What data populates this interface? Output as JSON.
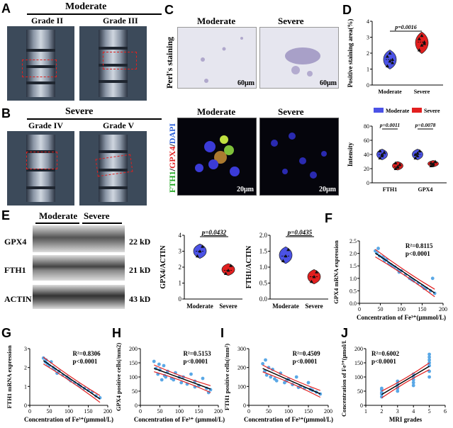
{
  "panels": {
    "A": {
      "label": "A",
      "group": "Moderate",
      "left": "Grade II",
      "right": "Grade III"
    },
    "B": {
      "label": "B",
      "group": "Severe",
      "left": "Grade IV",
      "right": "Grade V"
    },
    "C": {
      "label": "C",
      "col1": "Moderate",
      "col2": "Severe",
      "row1": "Perl's staining",
      "row2_fth1": "FTH1",
      "row2_gpx4": "GPX4",
      "row2_dapi": "DAPI",
      "sep": "/",
      "scale1": "60μm",
      "scale2": "60μm",
      "scale3": "20μm",
      "scale4": "20μm"
    },
    "D": {
      "label": "D"
    },
    "E": {
      "label": "E",
      "moderate": "Moderate",
      "severe": "Severe",
      "gpx4": "GPX4",
      "fth1": "FTH1",
      "actin": "ACTIN",
      "kd_gpx4": "22 kD",
      "kd_fth1": "21 kD",
      "kd_actin": "43 kD"
    },
    "F": {
      "label": "F"
    },
    "G": {
      "label": "G"
    },
    "H": {
      "label": "H"
    },
    "I": {
      "label": "I"
    },
    "J": {
      "label": "J"
    }
  },
  "colors": {
    "moderate": "#4b52e6",
    "severe": "#e21f1f",
    "points": "#5aa8e6",
    "fit": "#000000",
    "ci": "#e21f1f"
  },
  "chart_data": [
    {
      "id": "D-top",
      "type": "violin",
      "ylabel": "Positive staining area(%)",
      "categories": [
        "Moderate",
        "Severe"
      ],
      "ylim": [
        0,
        4
      ],
      "yticks": [
        0,
        1,
        2,
        3,
        4
      ],
      "p": "p=0.0016",
      "series": [
        {
          "name": "Moderate",
          "values": [
            1.2,
            1.5,
            1.6,
            1.8,
            2.0,
            1.4
          ]
        },
        {
          "name": "Severe",
          "values": [
            2.2,
            2.5,
            2.7,
            2.9,
            3.1,
            2.6
          ]
        }
      ]
    },
    {
      "id": "D-bottom",
      "type": "violin",
      "ylabel": "Intensity",
      "categories": [
        "FTH1",
        "GPX4"
      ],
      "ylim": [
        0,
        80
      ],
      "yticks": [
        0,
        20,
        40,
        60,
        80
      ],
      "legend": [
        "Moderate",
        "Severe"
      ],
      "p": [
        "p=0.0011",
        "p=0.0078"
      ],
      "series": [
        {
          "name": "Moderate",
          "values": [
            [
              35,
              40,
              43,
              45,
              38
            ],
            [
              35,
              42,
              45,
              40,
              38
            ]
          ]
        },
        {
          "name": "Severe",
          "values": [
            [
              20,
              23,
              26,
              28,
              22
            ],
            [
              24,
              27,
              30,
              28,
              25
            ]
          ]
        }
      ]
    },
    {
      "id": "E-mid",
      "type": "violin",
      "ylabel": "GPX4/ACTIN",
      "categories": [
        "Moderate",
        "Severe"
      ],
      "ylim": [
        0,
        4
      ],
      "yticks": [
        0,
        1,
        2,
        3,
        4
      ],
      "p": "p=0.0432",
      "series": [
        {
          "name": "Moderate",
          "values": [
            2.7,
            3.0,
            3.3
          ]
        },
        {
          "name": "Severe",
          "values": [
            1.6,
            1.8,
            2.1
          ]
        }
      ]
    },
    {
      "id": "E-right",
      "type": "violin",
      "ylabel": "FTH1/ACTIN",
      "categories": [
        "Moderate",
        "Severe"
      ],
      "ylim": [
        0,
        2.0
      ],
      "yticks": [
        0.0,
        0.5,
        1.0,
        1.5,
        2.0
      ],
      "p": "p=0.0435",
      "series": [
        {
          "name": "Moderate",
          "values": [
            1.2,
            1.35,
            1.55
          ]
        },
        {
          "name": "Severe",
          "values": [
            0.55,
            0.7,
            0.85
          ]
        }
      ]
    },
    {
      "id": "F",
      "type": "scatter",
      "xlabel": "Concentration of Fe³⁺(μmmol/L)",
      "ylabel": "GPX4 mRNA expression",
      "xlim": [
        0,
        200
      ],
      "xticks": [
        0,
        50,
        100,
        150,
        200
      ],
      "ylim": [
        0,
        2.5
      ],
      "yticks": [
        0.0,
        0.5,
        1.0,
        1.5,
        2.0,
        2.5
      ],
      "r2": "R²=0.8115",
      "p": "p<0.0001",
      "x": [
        38,
        42,
        48,
        55,
        60,
        65,
        70,
        78,
        85,
        92,
        100,
        110,
        120,
        130,
        140,
        150,
        160,
        170,
        180,
        45,
        58,
        75,
        95,
        125,
        155,
        175
      ],
      "y": [
        2.1,
        2.0,
        1.9,
        1.85,
        1.7,
        1.75,
        1.6,
        1.5,
        1.45,
        1.35,
        1.3,
        1.15,
        1.0,
        0.9,
        0.8,
        0.7,
        0.6,
        0.5,
        0.4,
        2.2,
        1.8,
        1.55,
        1.25,
        0.95,
        0.6,
        1.0
      ]
    },
    {
      "id": "G",
      "type": "scatter",
      "xlabel": "Concentration of Fe³⁺(μmmol/L)",
      "ylabel": "FTH1 mRNA expression",
      "xlim": [
        0,
        200
      ],
      "xticks": [
        0,
        50,
        100,
        150,
        200
      ],
      "ylim": [
        0,
        3
      ],
      "yticks": [
        0,
        1,
        2,
        3
      ],
      "r2": "R²=0.8306",
      "p": "p<0.0001",
      "x": [
        35,
        40,
        45,
        50,
        55,
        60,
        65,
        75,
        85,
        95,
        105,
        115,
        130,
        140,
        150,
        160,
        170,
        180,
        42,
        70,
        100,
        125
      ],
      "y": [
        2.5,
        2.3,
        2.2,
        2.1,
        2.3,
        2.0,
        1.9,
        1.8,
        1.6,
        1.5,
        1.3,
        1.2,
        1.0,
        0.9,
        0.8,
        0.7,
        0.5,
        0.4,
        2.4,
        1.7,
        1.4,
        1.1
      ]
    },
    {
      "id": "H",
      "type": "scatter",
      "xlabel": "Concentration of Fe³⁺ (μmmol/L)",
      "ylabel": "GPX4 positive cells(/mm2)",
      "xlim": [
        0,
        200
      ],
      "xticks": [
        0,
        50,
        100,
        150,
        200
      ],
      "ylim": [
        0,
        200
      ],
      "yticks": [
        0,
        50,
        100,
        150,
        200
      ],
      "r2": "R²=0.5153",
      "p": "p<0.0001",
      "x": [
        35,
        40,
        45,
        50,
        55,
        60,
        65,
        70,
        80,
        90,
        100,
        110,
        120,
        130,
        140,
        150,
        160,
        170,
        180,
        48,
        62,
        85,
        105,
        140,
        175
      ],
      "y": [
        155,
        130,
        110,
        125,
        90,
        140,
        100,
        120,
        95,
        115,
        100,
        100,
        75,
        110,
        85,
        70,
        95,
        60,
        55,
        145,
        105,
        90,
        80,
        65,
        45
      ]
    },
    {
      "id": "I",
      "type": "scatter",
      "xlabel": "Concentration of Fe³⁺(μmmol/L)",
      "ylabel": "FTH1 positive cells(/mm²)",
      "xlim": [
        0,
        200
      ],
      "xticks": [
        0,
        50,
        100,
        150,
        200
      ],
      "ylim": [
        0,
        300
      ],
      "yticks": [
        0,
        100,
        200,
        300
      ],
      "r2": "R²=0.4509",
      "p": "p<0.0001",
      "x": [
        35,
        40,
        45,
        50,
        55,
        60,
        70,
        80,
        90,
        100,
        110,
        120,
        130,
        140,
        150,
        160,
        170,
        180,
        42,
        65,
        95,
        125,
        155
      ],
      "y": [
        220,
        180,
        160,
        200,
        150,
        190,
        130,
        170,
        120,
        140,
        110,
        150,
        100,
        90,
        120,
        80,
        70,
        60,
        240,
        140,
        130,
        95,
        85
      ]
    },
    {
      "id": "J",
      "type": "scatter",
      "xlabel": "MRI grades",
      "ylabel": "Concentration of Fe³⁺(μmol/L)",
      "xlim": [
        1,
        6
      ],
      "xticks": [
        1,
        2,
        3,
        4,
        5,
        6
      ],
      "ylim": [
        0,
        200
      ],
      "yticks": [
        0,
        50,
        100,
        150,
        200
      ],
      "r2": "R²=0.6002",
      "p": "p<0.0001",
      "x": [
        2,
        2,
        2,
        2,
        2,
        3,
        3,
        3,
        3,
        3,
        4,
        4,
        4,
        4,
        4,
        5,
        5,
        5,
        5,
        5,
        5,
        5
      ],
      "y": [
        30,
        40,
        45,
        55,
        60,
        50,
        60,
        65,
        75,
        85,
        70,
        80,
        90,
        100,
        110,
        100,
        120,
        140,
        150,
        160,
        170,
        180
      ]
    }
  ]
}
